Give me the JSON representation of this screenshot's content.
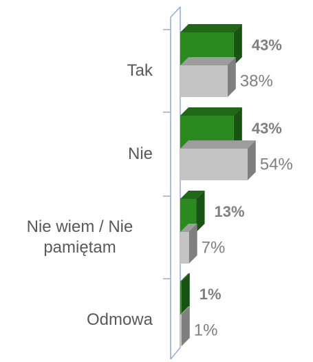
{
  "chart_data": {
    "type": "bar3d",
    "categories": [
      "Tak",
      "Nie",
      "Nie wiem / Nie pamiętam",
      "Odmowa"
    ],
    "series": [
      {
        "color": "#2a8a1f",
        "values": [
          43,
          43,
          13,
          1
        ],
        "value_labels": [
          "43%",
          "43%",
          "13%",
          "1%"
        ]
      },
      {
        "color": "#c4c4c4",
        "values": [
          38,
          54,
          7,
          1
        ],
        "value_labels": [
          "38%",
          "54%",
          "7%",
          "1%"
        ]
      }
    ]
  }
}
